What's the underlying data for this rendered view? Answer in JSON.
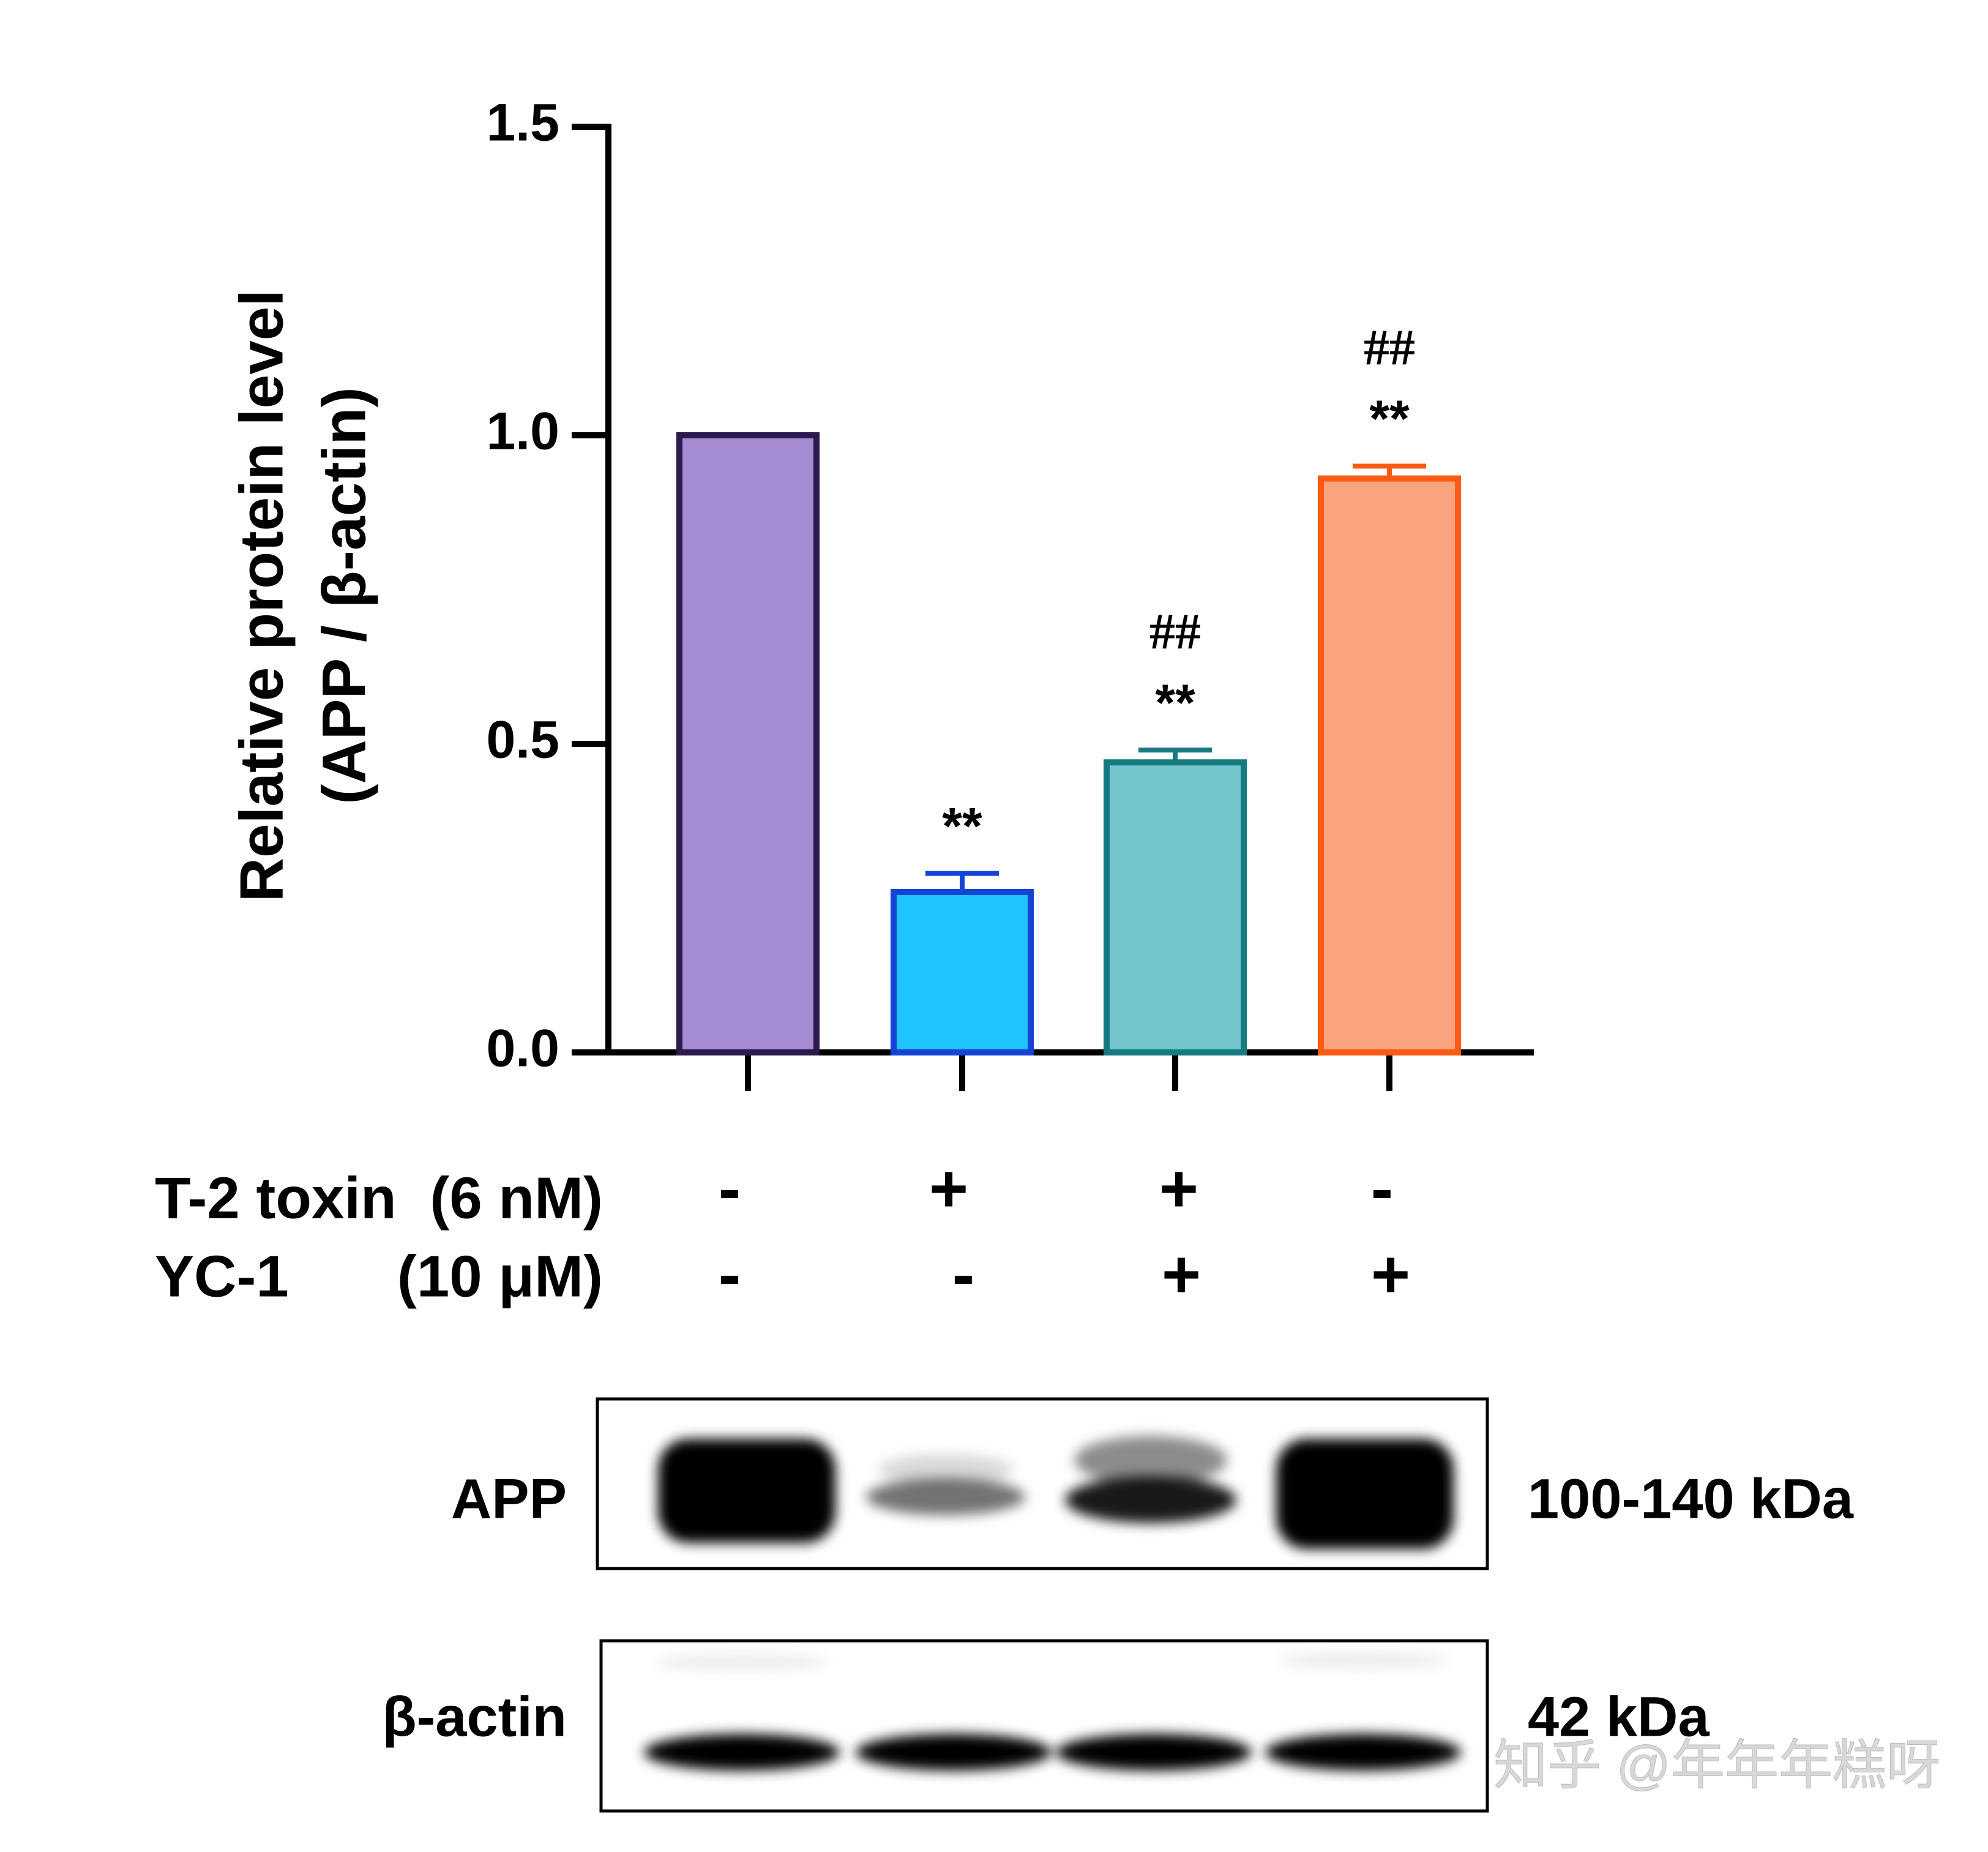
{
  "chart_data": {
    "type": "bar",
    "ylabel": [
      "Relative protein level",
      "(APP / β-actin)"
    ],
    "categories": [
      null,
      null,
      null,
      null
    ],
    "series": [
      {
        "values": [
          1.0,
          0.26,
          0.47,
          0.93
        ],
        "errors": [
          0,
          0.03,
          0.02,
          0.02
        ],
        "colors": [
          "#a58bd1",
          "#1fc4fe",
          "#72c6cc",
          "#f9a47f"
        ],
        "edgecolors": [
          "#2b1a4e",
          "#1443d6",
          "#167a80",
          "#fb5a12"
        ]
      }
    ],
    "annotations": [
      null,
      [
        "**"
      ],
      [
        "##",
        "**"
      ],
      [
        "##",
        "**"
      ]
    ],
    "ylim": [
      0,
      1.5
    ],
    "yticks": [
      {
        "value": 0,
        "label": "0.0"
      },
      0.5,
      {
        "value": 1,
        "label": "1.0"
      },
      1.5
    ]
  },
  "treatments": [
    {
      "name": "T-2 toxin",
      "dose": "(6 nM)",
      "signs": [
        "-",
        "+",
        "+",
        "-"
      ]
    },
    {
      "name": "YC-1",
      "dose": "(10 μM)",
      "signs": [
        "-",
        "-",
        "+",
        "+"
      ]
    }
  ],
  "blots": [
    {
      "label": "APP",
      "size": "100-140 kDa"
    },
    {
      "label": "β-actin",
      "size": "42 kDa"
    }
  ],
  "watermark": "知乎 @年年年糕呀"
}
